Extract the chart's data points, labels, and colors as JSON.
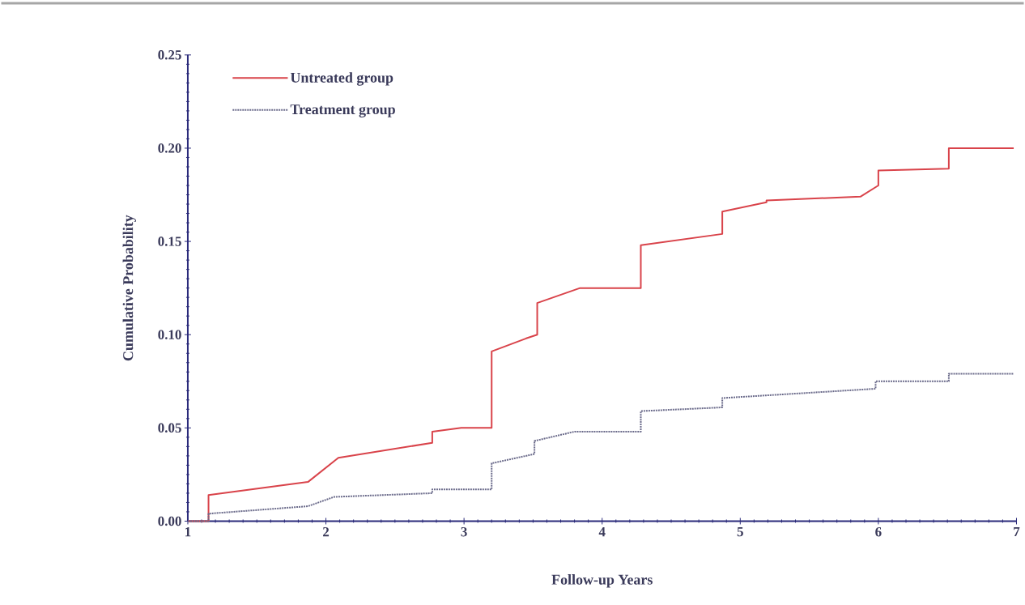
{
  "chart_data": {
    "type": "line",
    "xlabel": "Follow-up Years",
    "ylabel": "Cumulative Probability",
    "xlim": [
      1,
      7
    ],
    "ylim": [
      0,
      0.25
    ],
    "xticks": [
      1,
      2,
      3,
      4,
      5,
      6,
      7
    ],
    "yticks": [
      {
        "value": 0,
        "label": "0.00"
      },
      {
        "value": 0.05,
        "label": "0.05"
      },
      {
        "value": 0.1,
        "label": "0.10"
      },
      {
        "value": 0.15,
        "label": "0.15"
      },
      {
        "value": 0.2,
        "label": "0.20"
      },
      {
        "value": 0.25,
        "label": "0.25"
      }
    ],
    "legend": "top left",
    "grid": false,
    "series": [
      {
        "name": "Untreated group",
        "color": "#d9434a",
        "line_style": "solid",
        "x": [
          1.0,
          1.15,
          1.15,
          1.87,
          2.09,
          2.77,
          2.77,
          2.98,
          3.2,
          3.2,
          3.45,
          3.53,
          3.53,
          3.84,
          4.28,
          4.28,
          4.87,
          4.87,
          5.19,
          5.19,
          5.87,
          6.0,
          6.0,
          6.51,
          6.51,
          6.98
        ],
        "values": [
          0.0,
          0.0,
          0.014,
          0.021,
          0.034,
          0.042,
          0.048,
          0.05,
          0.05,
          0.091,
          0.098,
          0.1,
          0.117,
          0.125,
          0.125,
          0.148,
          0.154,
          0.166,
          0.171,
          0.172,
          0.174,
          0.18,
          0.188,
          0.189,
          0.2,
          0.2
        ]
      },
      {
        "name": "Treatment group",
        "color": "#6a6a8a",
        "line_style": "dotted",
        "x": [
          1.0,
          1.15,
          1.15,
          1.87,
          2.06,
          2.77,
          2.77,
          3.2,
          3.2,
          3.51,
          3.51,
          3.8,
          4.28,
          4.28,
          4.87,
          4.87,
          5.98,
          5.98,
          6.51,
          6.51,
          6.98
        ],
        "values": [
          0.0,
          0.0,
          0.004,
          0.008,
          0.013,
          0.015,
          0.017,
          0.017,
          0.031,
          0.036,
          0.043,
          0.048,
          0.048,
          0.059,
          0.061,
          0.066,
          0.071,
          0.075,
          0.075,
          0.079,
          0.079
        ]
      }
    ]
  }
}
